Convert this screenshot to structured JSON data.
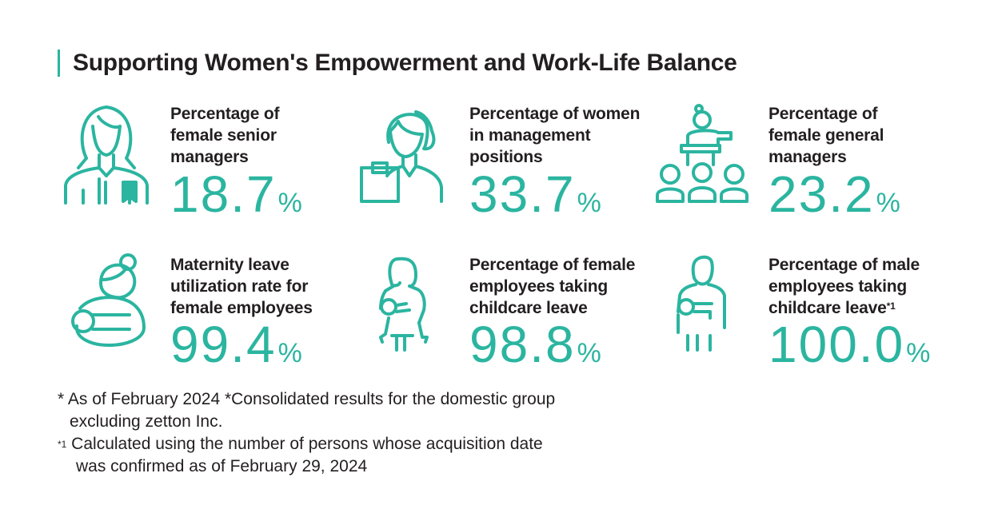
{
  "title": "Supporting Women's Empowerment and Work-Life Balance",
  "accent_color": "#2bb5a0",
  "stats": [
    {
      "icon": "woman-with-badge-icon",
      "label_lines": [
        "Percentage of",
        "female senior",
        "managers"
      ],
      "value": "18.7",
      "unit": "%"
    },
    {
      "icon": "woman-with-clipboard-icon",
      "label_lines": [
        "Percentage of women",
        "in management",
        "positions"
      ],
      "value": "33.7",
      "unit": "%"
    },
    {
      "icon": "presenter-audience-icon",
      "label_lines": [
        "Percentage of",
        "female general",
        "managers"
      ],
      "value": "23.2",
      "unit": "%"
    },
    {
      "icon": "mother-holding-baby-icon",
      "label_lines": [
        "Maternity leave",
        "utilization rate for",
        "female employees"
      ],
      "value": "99.4",
      "unit": "%"
    },
    {
      "icon": "woman-holding-baby-icon",
      "label_lines": [
        "Percentage of female",
        "employees taking",
        "childcare leave"
      ],
      "value": "98.8",
      "unit": "%"
    },
    {
      "icon": "man-holding-baby-icon",
      "label_lines": [
        "Percentage of male",
        "employees taking",
        "childcare leave"
      ],
      "label_sup": "*1",
      "value": "100.0",
      "unit": "%"
    }
  ],
  "notes": {
    "line1": "* As of February 2024 *Consolidated results for the domestic group",
    "line2": "excluding zetton Inc.",
    "line3_sup": "*1",
    "line3": " Calculated using the number of persons whose acquisition date",
    "line4": "was confirmed as of February 29, 2024"
  }
}
